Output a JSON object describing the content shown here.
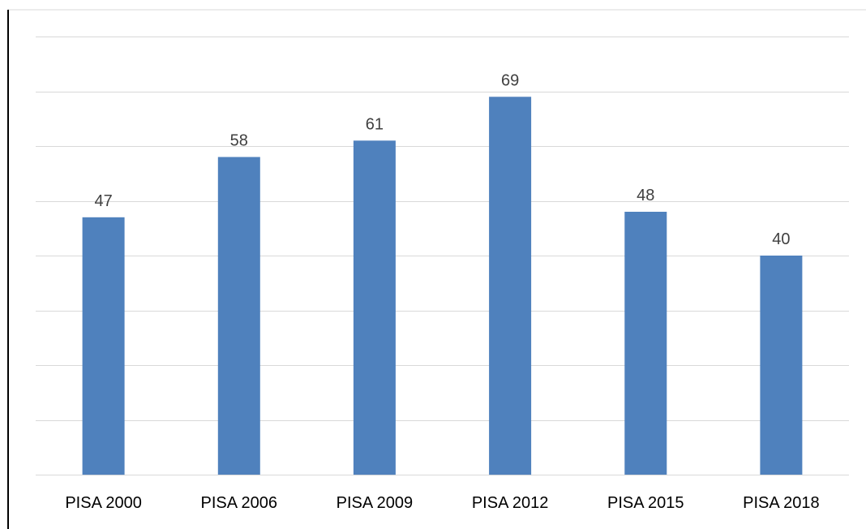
{
  "chart_data": {
    "type": "bar",
    "title": "",
    "xlabel": "",
    "ylabel": "",
    "categories": [
      "PISA 2000",
      "PISA 2006",
      "PISA 2009",
      "PISA 2012",
      "PISA 2015",
      "PISA 2018"
    ],
    "series": [
      {
        "values": [
          47,
          58,
          61,
          69,
          48,
          40
        ],
        "color": "#4f81bd"
      }
    ],
    "ylim": [
      0,
      80
    ],
    "ytick_step": 10,
    "grid": true,
    "legend": "none",
    "data_labels": true
  }
}
